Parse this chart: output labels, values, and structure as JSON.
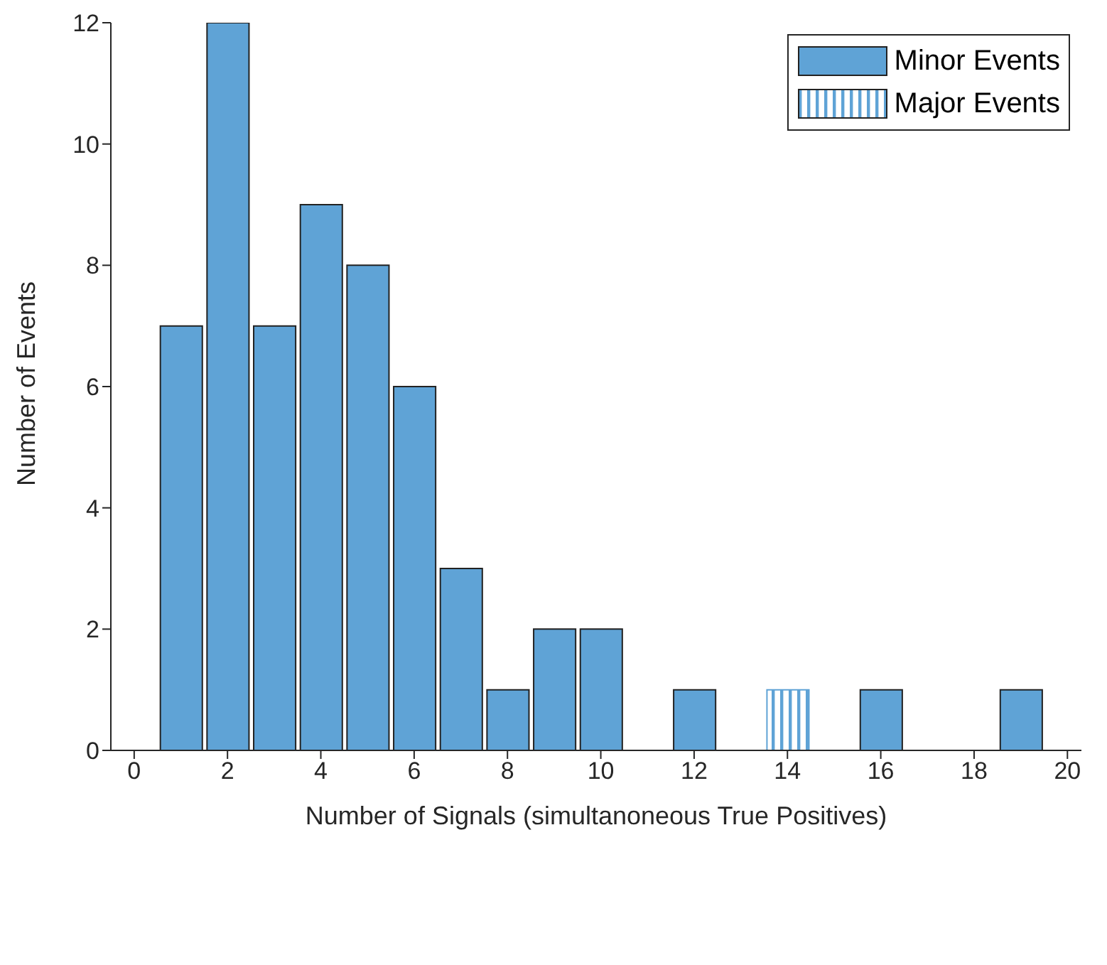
{
  "chart_data": {
    "type": "histogram",
    "xlabel": "Number of Signals (simultanoneous True Positives)",
    "ylabel": "Number of Events",
    "bins": [
      0.5,
      1.5,
      2.5,
      3.5,
      4.5,
      5.5,
      6.5,
      7.5,
      8.5,
      9.5,
      10.5,
      11.5,
      12.5,
      13.5,
      14.5,
      15.5,
      16.5,
      17.5,
      18.5,
      19.5
    ],
    "series": [
      {
        "name": "Minor Events",
        "color": "#5fa3d6",
        "values": [
          7,
          12,
          7,
          9,
          8,
          6,
          3,
          1,
          2,
          2,
          0,
          1,
          0,
          0,
          0,
          1,
          0,
          0,
          1
        ]
      },
      {
        "name": "Major Events",
        "color": "#5fa3d6",
        "values": [
          null,
          null,
          null,
          null,
          null,
          null,
          null,
          null,
          null,
          null,
          null,
          null,
          null,
          1,
          null,
          null,
          null,
          null,
          null
        ]
      }
    ],
    "xlim": [
      -0.5,
      20.3
    ],
    "xticks": [
      0,
      2,
      4,
      6,
      8,
      10,
      12,
      14,
      16,
      18,
      20
    ],
    "ylim": [
      0,
      12
    ],
    "yticks": [
      0,
      2,
      4,
      6,
      8,
      10,
      12
    ],
    "grid": false,
    "legend": "top right"
  }
}
